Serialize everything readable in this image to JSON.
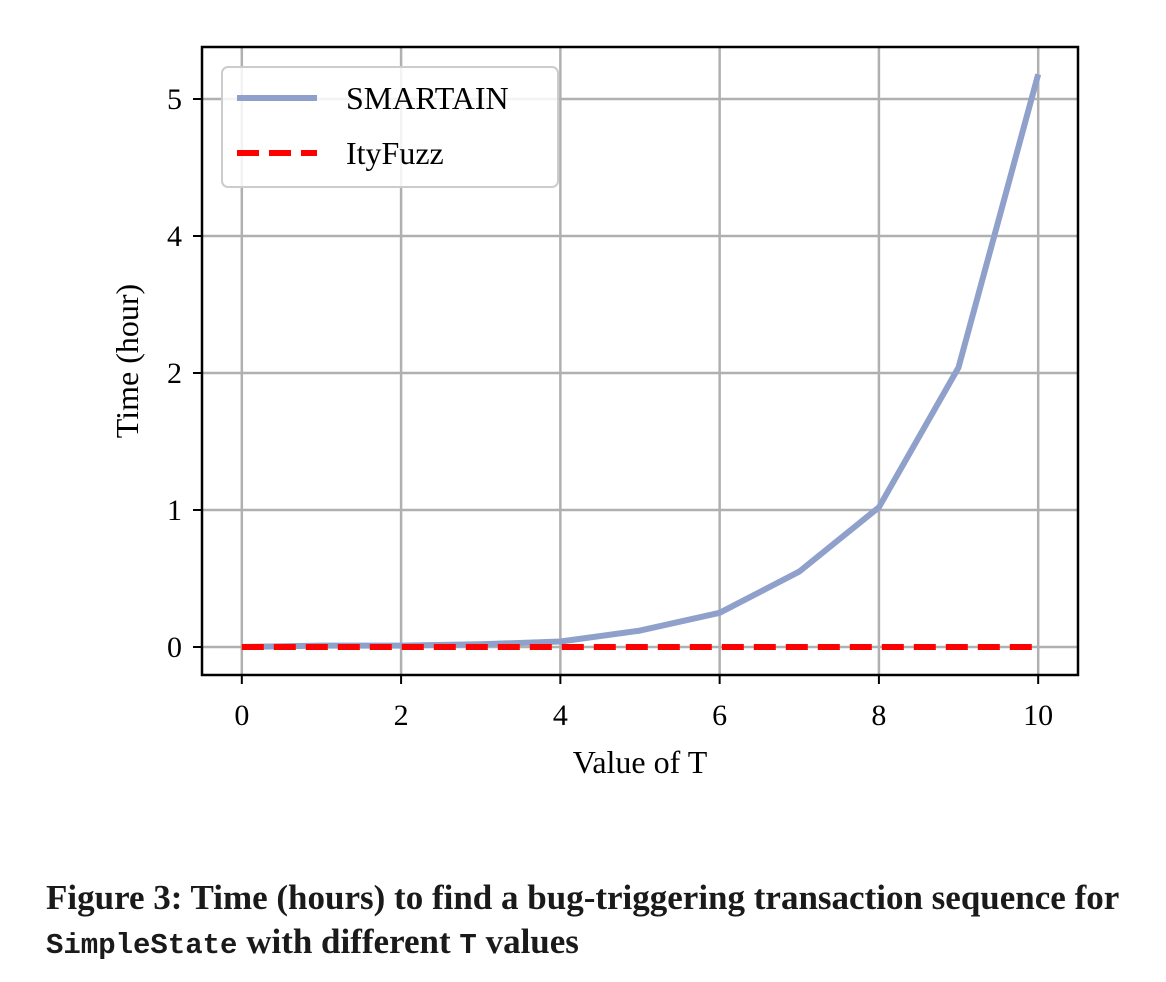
{
  "chart_data": {
    "type": "line",
    "xlabel": "Value of T",
    "ylabel": "Time (hour)",
    "xlim": [
      -0.5,
      10.5
    ],
    "x_ticks": [
      0,
      2,
      4,
      6,
      8,
      10
    ],
    "y_ticks": [
      0,
      1,
      2,
      4,
      5
    ],
    "grid": true,
    "legend": "top-left",
    "x": [
      0,
      1,
      2,
      3,
      4,
      5,
      6,
      7,
      8,
      9,
      10
    ],
    "series": [
      {
        "name": "SMARTAIN",
        "color": "#8fa0cb",
        "style": "solid",
        "values": [
          0,
          0.01,
          0.01,
          0.02,
          0.04,
          0.12,
          0.25,
          0.55,
          1.02,
          2.08,
          5.18
        ]
      },
      {
        "name": "ItyFuzz",
        "color": "#ff0000",
        "style": "dashed",
        "values": [
          0,
          0,
          0,
          0,
          0,
          0,
          0,
          0,
          0,
          0,
          0
        ]
      }
    ]
  },
  "caption": {
    "part1": "Figure 3: Time (hours) to find a bug-triggering transaction sequence for ",
    "code1": "SimpleState",
    "part2": " with different ",
    "code2": "T",
    "part3": " values"
  }
}
